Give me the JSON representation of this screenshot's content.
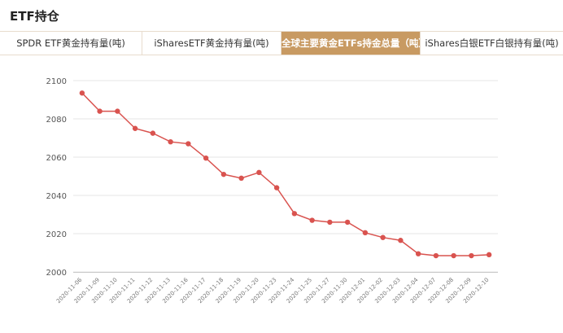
{
  "header": {
    "title": "ETF持仓"
  },
  "tabs": [
    {
      "label": "SPDR ETF黄金持有量(吨)",
      "active": false
    },
    {
      "label": "iSharesETF黄金持有量(吨)",
      "active": false
    },
    {
      "label": "全球主要黄金ETFs持金总量（吨）",
      "active": true
    },
    {
      "label": "iShares白银ETF白银持有量(吨)",
      "active": false
    }
  ],
  "colors": {
    "accent": "#c89a62",
    "series_line": "#d9534f",
    "grid": "#e6e6e6"
  },
  "chart_data": {
    "type": "line",
    "categories": [
      "2020-11-06",
      "2020-11-09",
      "2020-11-10",
      "2020-11-11",
      "2020-11-12",
      "2020-11-13",
      "2020-11-16",
      "2020-11-17",
      "2020-11-18",
      "2020-11-19",
      "2020-11-20",
      "2020-11-23",
      "2020-11-24",
      "2020-11-25",
      "2020-11-27",
      "2020-11-30",
      "2020-12-01",
      "2020-12-02",
      "2020-12-03",
      "2020-12-04",
      "2020-12-07",
      "2020-12-08",
      "2020-12-09",
      "2020-12-10"
    ],
    "values": [
      2093.5,
      2084.0,
      2084.0,
      2075.0,
      2072.5,
      2068.0,
      2067.0,
      2059.5,
      2051.0,
      2049.0,
      2052.0,
      2044.0,
      2030.5,
      2027.0,
      2026.0,
      2026.0,
      2020.5,
      2018.0,
      2016.5,
      2009.5,
      2008.5,
      2008.5,
      2008.5,
      2009.0
    ],
    "ylim": [
      2000,
      2100
    ],
    "yticks": [
      2000,
      2020,
      2040,
      2060,
      2080,
      2100
    ],
    "grid": true,
    "legend": "none"
  }
}
